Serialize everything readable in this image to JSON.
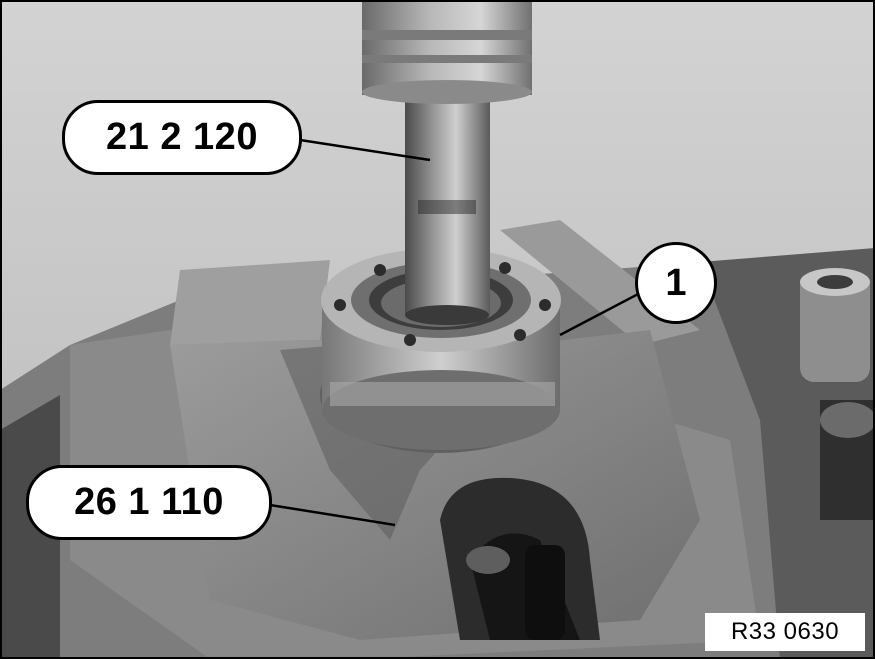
{
  "figure": {
    "reference_code": "R33 0630",
    "callouts": {
      "tool_upper": "21 2 120",
      "component": "1",
      "tool_lower": "26 1 110"
    },
    "photo": {
      "subject": "grayscale workshop photo",
      "background_color": "#c9c9c9",
      "metal_color": "#8a8a8a",
      "dark_color": "#2e2e2e"
    }
  }
}
